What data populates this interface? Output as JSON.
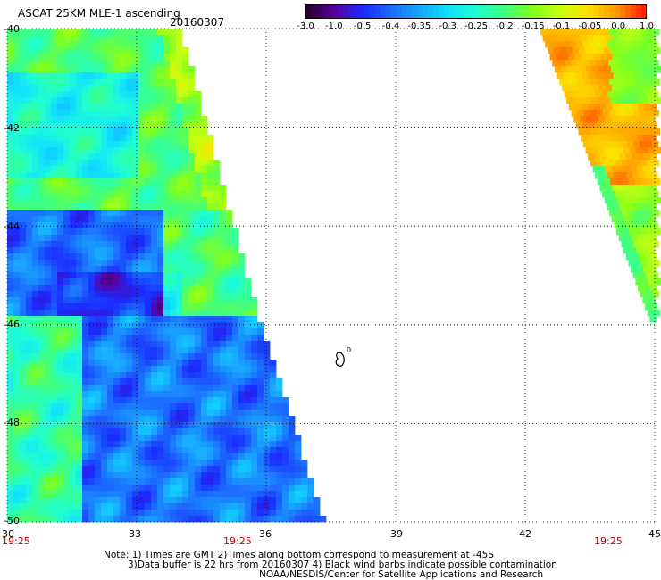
{
  "header": {
    "title": "ASCAT 25KM MLE-1 ascending",
    "date": "20160307"
  },
  "colorbar": {
    "labels": [
      "-3.0",
      "-1.0",
      "-0.5",
      "-0.4",
      "-0.35",
      "-0.3",
      "-0.25",
      "-0.2",
      "-0.15",
      "-0.1",
      "-0.05",
      "0.0",
      "1.0"
    ],
    "colors": [
      "#2a0030",
      "#5a00a0",
      "#1a2cff",
      "#1c6cff",
      "#18a8ff",
      "#10e0ff",
      "#20ffd0",
      "#40ff80",
      "#80ff20",
      "#c8ff10",
      "#ffe000",
      "#ff9a00",
      "#ff2000"
    ]
  },
  "map": {
    "lon_ticks": [
      "30",
      "33",
      "36",
      "39",
      "42",
      "45"
    ],
    "lat_ticks": [
      "-40",
      "-42",
      "-44",
      "-46",
      "-48",
      "-50"
    ],
    "lon_range": [
      30,
      45
    ],
    "lat_range": [
      -50,
      -40
    ],
    "grid": "dotted",
    "contour_label": "0"
  },
  "times": {
    "left": "19:25",
    "middle": "19:25",
    "right": "19:25"
  },
  "notes": {
    "line1": "Note: 1) Times are GMT 2)Times along bottom correspond to measurement at -45S",
    "line2": "3)Data buffer is 22 hrs from 20160307 4) Black wind barbs indicate possible contamination",
    "line3": "NOAA/NESDIS/Center for Satellite Applications and Research"
  }
}
